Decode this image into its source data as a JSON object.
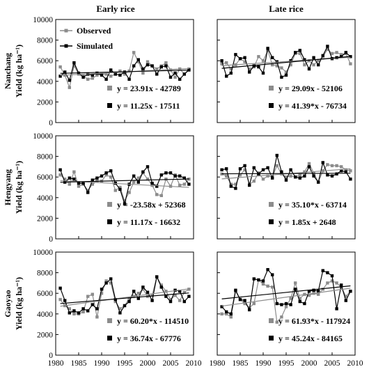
{
  "figure": {
    "col_titles": [
      "Early rice",
      "Late rice"
    ],
    "row_titles": [
      "Nanchang",
      "Hengyang",
      "Gaoyao"
    ],
    "ylabel": "Yield (kg ha⁻¹)",
    "legend": {
      "observed": "Observed",
      "simulated": "Simulated"
    },
    "colors": {
      "observed": "#8c8c8c",
      "simulated": "#000000"
    },
    "xticks": [
      "1980",
      "1985",
      "1990",
      "1995",
      "2000",
      "2005",
      "2010"
    ],
    "yticks": [
      "0",
      "2000",
      "4000",
      "6000",
      "8000",
      "10000"
    ]
  },
  "chart_data": [
    {
      "type": "line",
      "title": "Early rice",
      "row": "Nanchang",
      "xlim": [
        1980,
        2010
      ],
      "ylim": [
        0,
        10000
      ],
      "x": [
        1981,
        1982,
        1983,
        1984,
        1985,
        1986,
        1987,
        1988,
        1989,
        1990,
        1991,
        1992,
        1993,
        1994,
        1995,
        1996,
        1997,
        1998,
        1999,
        2000,
        2001,
        2002,
        2003,
        2004,
        2005,
        2006,
        2007,
        2008,
        2009
      ],
      "series": [
        {
          "name": "Observed",
          "values": [
            5400,
            4600,
            3400,
            5500,
            4700,
            4500,
            4200,
            4300,
            4600,
            4700,
            4700,
            4500,
            4700,
            5000,
            4700,
            5000,
            6800,
            5900,
            4800,
            5900,
            5500,
            5200,
            5500,
            5800,
            5100,
            4400,
            5200,
            4700,
            5200
          ]
        },
        {
          "name": "Simulated",
          "values": [
            4500,
            4900,
            4100,
            5800,
            4800,
            4400,
            4700,
            4600,
            4800,
            4600,
            4200,
            5100,
            4700,
            4600,
            4900,
            4200,
            5500,
            6100,
            5200,
            5600,
            5500,
            4700,
            5400,
            5500,
            4400,
            4800,
            4200,
            4700,
            5100
          ]
        }
      ],
      "equations": [
        {
          "series": "Observed",
          "text": "y = 23.91x - 42789",
          "slope": 23.91,
          "intercept": -42789
        },
        {
          "series": "Simulated",
          "text": "y = 11.25x - 17511",
          "slope": 11.25,
          "intercept": -17511
        }
      ]
    },
    {
      "type": "line",
      "title": "Late rice",
      "row": "Nanchang",
      "xlim": [
        1980,
        2010
      ],
      "ylim": [
        0,
        10000
      ],
      "x": [
        1981,
        1982,
        1983,
        1984,
        1985,
        1986,
        1987,
        1988,
        1989,
        1990,
        1991,
        1992,
        1993,
        1994,
        1995,
        1996,
        1997,
        1998,
        1999,
        2000,
        2001,
        2002,
        2003,
        2004,
        2005,
        2006,
        2007,
        2008,
        2009
      ],
      "series": [
        {
          "name": "Observed",
          "values": [
            5700,
            5800,
            5200,
            5600,
            6200,
            5900,
            5200,
            5400,
            6400,
            6000,
            7000,
            5600,
            5500,
            5300,
            4900,
            5600,
            6700,
            6700,
            5600,
            6000,
            5600,
            6000,
            6400,
            7100,
            6700,
            6800,
            6600,
            6700,
            5700
          ]
        },
        {
          "name": "Simulated",
          "values": [
            6000,
            4500,
            4800,
            6600,
            6200,
            6300,
            4900,
            5500,
            5400,
            4800,
            7200,
            6300,
            5900,
            4400,
            4600,
            6000,
            6800,
            7000,
            6100,
            5200,
            6300,
            5600,
            6500,
            7400,
            6200,
            6300,
            6400,
            6800,
            6400
          ]
        }
      ],
      "equations": [
        {
          "series": "Observed",
          "text": "y = 29.09x - 52106",
          "slope": 29.09,
          "intercept": -52106
        },
        {
          "series": "Simulated",
          "text": "y = 41.39*x - 76734",
          "slope": 41.39,
          "intercept": -76734
        }
      ]
    },
    {
      "type": "line",
      "title": "Early rice",
      "row": "Hengyang",
      "xlim": [
        1980,
        2010
      ],
      "ylim": [
        0,
        10000
      ],
      "x": [
        1981,
        1982,
        1983,
        1984,
        1985,
        1986,
        1987,
        1988,
        1989,
        1990,
        1991,
        1992,
        1993,
        1994,
        1995,
        1996,
        1997,
        1998,
        1999,
        2000,
        2001,
        2002,
        2003,
        2004,
        2005,
        2006,
        2007,
        2008,
        2009
      ],
      "series": [
        {
          "name": "Observed",
          "values": [
            6200,
            5800,
            5300,
            6500,
            5100,
            5300,
            4700,
            5300,
            5600,
            5600,
            6200,
            6000,
            4700,
            5000,
            3700,
            4500,
            5500,
            5900,
            6400,
            5800,
            5200,
            4300,
            4200,
            5800,
            5100,
            6200,
            5200,
            5300,
            5800
          ]
        },
        {
          "name": "Simulated",
          "values": [
            6700,
            5500,
            5900,
            5800,
            5400,
            5400,
            4500,
            5700,
            5900,
            6100,
            6400,
            6600,
            5400,
            4800,
            3400,
            5300,
            6100,
            5500,
            6500,
            7000,
            5400,
            5100,
            6200,
            6400,
            6400,
            6100,
            6100,
            5900,
            5300
          ]
        }
      ],
      "equations": [
        {
          "series": "Observed",
          "text": "y = -23.58x + 52368",
          "slope": -23.58,
          "intercept": 52368
        },
        {
          "series": "Simulated",
          "text": "y = 11.17x - 16632",
          "slope": 11.17,
          "intercept": -16632
        }
      ]
    },
    {
      "type": "line",
      "title": "Late rice",
      "row": "Hengyang",
      "xlim": [
        1980,
        2010
      ],
      "ylim": [
        0,
        10000
      ],
      "x": [
        1981,
        1982,
        1983,
        1984,
        1985,
        1986,
        1987,
        1988,
        1989,
        1990,
        1991,
        1992,
        1993,
        1994,
        1995,
        1996,
        1997,
        1998,
        1999,
        2000,
        2001,
        2002,
        2003,
        2004,
        2005,
        2006,
        2007,
        2008,
        2009
      ],
      "series": [
        {
          "name": "Observed",
          "values": [
            6300,
            6100,
            5300,
            5300,
            6200,
            6700,
            5300,
            5600,
            6400,
            5800,
            6100,
            6000,
            7100,
            6300,
            6000,
            6100,
            6000,
            6200,
            6500,
            7300,
            6400,
            5500,
            6600,
            7200,
            7100,
            7100,
            7000,
            6700,
            6600
          ]
        },
        {
          "name": "Simulated",
          "values": [
            6700,
            6800,
            5100,
            4900,
            6800,
            7100,
            5200,
            6900,
            6300,
            6700,
            6900,
            5900,
            8100,
            6500,
            5700,
            6700,
            6000,
            5900,
            6100,
            7000,
            6100,
            5500,
            7400,
            6200,
            6100,
            6300,
            6600,
            6500,
            5800
          ]
        }
      ],
      "equations": [
        {
          "series": "Observed",
          "text": "y = 35.10*x - 63714",
          "slope": 35.1,
          "intercept": -63714
        },
        {
          "series": "Simulated",
          "text": "y = 1.85x + 2648",
          "slope": 1.85,
          "intercept": 2648
        }
      ]
    },
    {
      "type": "line",
      "title": "Early rice",
      "row": "Gaoyao",
      "xlim": [
        1980,
        2010
      ],
      "ylim": [
        0,
        10000
      ],
      "x": [
        1981,
        1982,
        1983,
        1984,
        1985,
        1986,
        1987,
        1988,
        1989,
        1990,
        1991,
        1992,
        1993,
        1994,
        1995,
        1996,
        1997,
        1998,
        1999,
        2000,
        2001,
        2002,
        2003,
        2004,
        2005,
        2006,
        2007,
        2008,
        2009
      ],
      "series": [
        {
          "name": "Observed",
          "values": [
            5400,
            4800,
            4500,
            4000,
            4000,
            4200,
            5700,
            5900,
            3700,
            6000,
            7200,
            7000,
            5200,
            4500,
            4800,
            5500,
            5700,
            6000,
            6400,
            5700,
            5800,
            7600,
            6800,
            6200,
            5400,
            5800,
            5300,
            6100,
            6400
          ]
        },
        {
          "name": "Simulated",
          "values": [
            6500,
            5300,
            4100,
            4300,
            4100,
            4500,
            4300,
            4900,
            4500,
            6400,
            7000,
            7400,
            5400,
            4100,
            4800,
            5200,
            6200,
            5500,
            6600,
            6100,
            5300,
            7600,
            6600,
            5700,
            5200,
            6300,
            6200,
            5200,
            5700
          ]
        }
      ],
      "equations": [
        {
          "series": "Observed",
          "text": "y = 60.20*x - 114510",
          "slope": 60.2,
          "intercept": -114510
        },
        {
          "series": "Simulated",
          "text": "y = 36.74x - 67776",
          "slope": 36.74,
          "intercept": -67776
        }
      ]
    },
    {
      "type": "line",
      "title": "Late rice",
      "row": "Gaoyao",
      "xlim": [
        1980,
        2010
      ],
      "ylim": [
        0,
        10000
      ],
      "x": [
        1981,
        1982,
        1983,
        1984,
        1985,
        1986,
        1987,
        1988,
        1989,
        1990,
        1991,
        1992,
        1993,
        1994,
        1995,
        1996,
        1997,
        1998,
        1999,
        2000,
        2001,
        2002,
        2003,
        2004,
        2005,
        2006,
        2007,
        2008,
        2009
      ],
      "series": [
        {
          "name": "Observed",
          "values": [
            4000,
            4000,
            3700,
            6200,
            5400,
            5000,
            4600,
            5000,
            7300,
            6900,
            6700,
            6600,
            3200,
            3700,
            4700,
            5500,
            7000,
            5500,
            5900,
            5800,
            6000,
            5900,
            6400,
            7000,
            7200,
            7000,
            6600,
            5700,
            6200
          ]
        },
        {
          "name": "Simulated",
          "values": [
            4700,
            4200,
            4000,
            6300,
            5400,
            5300,
            4400,
            7400,
            7300,
            7200,
            8300,
            7800,
            5000,
            4900,
            5000,
            4900,
            6400,
            5200,
            5000,
            6200,
            6300,
            6200,
            8200,
            8000,
            7700,
            4500,
            6800,
            5300,
            6200
          ]
        }
      ],
      "equations": [
        {
          "series": "Observed",
          "text": "y = 61.93*x - 117924",
          "slope": 61.93,
          "intercept": -117924
        },
        {
          "series": "Simulated",
          "text": "y = 45.24x - 84165",
          "slope": 45.24,
          "intercept": -84165
        }
      ]
    }
  ]
}
